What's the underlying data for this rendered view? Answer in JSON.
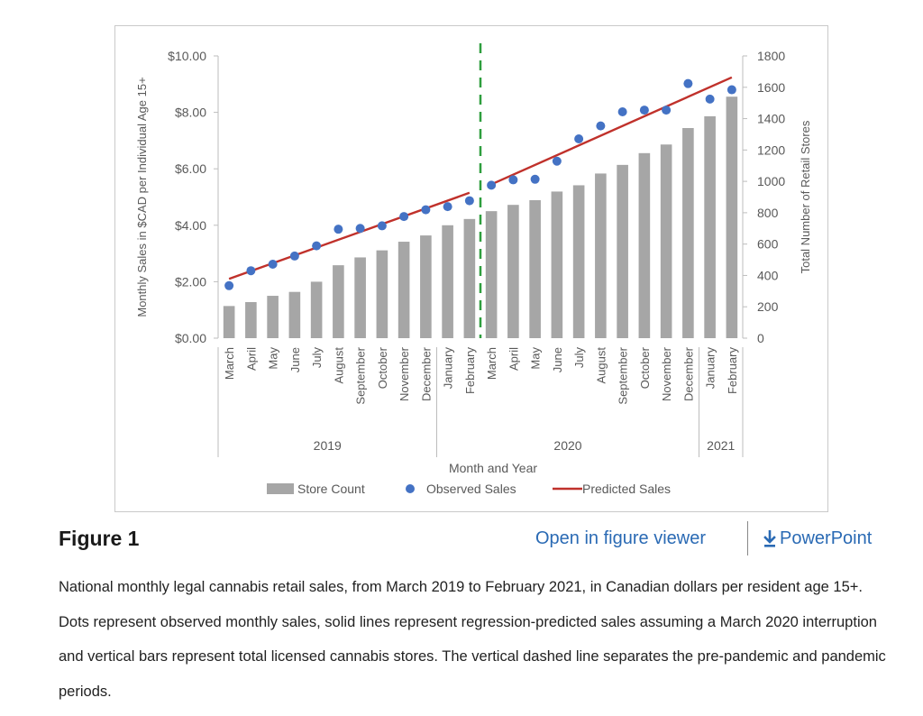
{
  "figure": {
    "title": "Figure 1",
    "open_viewer_label": "Open in figure viewer",
    "powerpoint_label": "PowerPoint",
    "link_color": "#2a6ab4",
    "download_icon": "download-icon",
    "caption": "National monthly legal cannabis retail sales, from March 2019 to February 2021, in Canadian dollars per resident age 15+. Dots represent observed monthly sales, solid lines represent regression-predicted sales assuming a March 2020 interruption and vertical bars represent total licensed cannabis stores. The vertical dashed line separates the pre-pandemic and pandemic periods."
  },
  "chart_data": {
    "type": "bar",
    "xlabel": "Month and Year",
    "ylabel_left": "Monthly Sales in $CAD per Individual Age 15+",
    "ylabel_right": "Total Number of Retail Stores",
    "ylim_left": [
      0,
      10
    ],
    "ylim_right": [
      0,
      1800
    ],
    "left_ticks": [
      "$0.00",
      "$2.00",
      "$4.00",
      "$6.00",
      "$8.00",
      "$10.00"
    ],
    "right_ticks": [
      "0",
      "200",
      "400",
      "600",
      "800",
      "1000",
      "1200",
      "1400",
      "1600",
      "1800"
    ],
    "grid": false,
    "legend_position": "bottom",
    "categories": [
      "March",
      "April",
      "May",
      "June",
      "July",
      "August",
      "September",
      "October",
      "November",
      "December",
      "January",
      "February",
      "March",
      "April",
      "May",
      "June",
      "July",
      "August",
      "September",
      "October",
      "November",
      "December",
      "January",
      "February"
    ],
    "year_groups": [
      {
        "label": "2019",
        "start": 0,
        "end": 9
      },
      {
        "label": "2020",
        "start": 10,
        "end": 21
      },
      {
        "label": "2021",
        "start": 22,
        "end": 23
      }
    ],
    "series": [
      {
        "name": "Store Count",
        "type": "bar",
        "axis": "right",
        "color": "#a6a6a6",
        "values": [
          205,
          230,
          270,
          295,
          360,
          465,
          515,
          560,
          615,
          655,
          720,
          760,
          810,
          850,
          880,
          935,
          975,
          1050,
          1105,
          1180,
          1235,
          1340,
          1415,
          1540
        ]
      },
      {
        "name": "Observed Sales",
        "type": "scatter",
        "axis": "left",
        "color": "#4472c4",
        "values": [
          1.86,
          2.39,
          2.62,
          2.91,
          3.27,
          3.86,
          3.89,
          3.98,
          4.31,
          4.55,
          4.66,
          4.87,
          5.42,
          5.61,
          5.63,
          6.27,
          7.06,
          7.52,
          8.02,
          8.08,
          8.08,
          9.02,
          8.47,
          8.8
        ]
      },
      {
        "name": "Predicted Sales",
        "type": "line",
        "axis": "left",
        "color": "#c0312b",
        "segments": [
          {
            "x_from": 0,
            "x_to": 11,
            "y_from": 2.1,
            "y_to": 5.15
          },
          {
            "x_from": 12,
            "x_to": 23,
            "y_from": 5.45,
            "y_to": 9.24
          }
        ]
      }
    ],
    "annotations": [
      {
        "type": "vertical-dashed-line",
        "between": [
          11,
          12
        ],
        "color": "#2e9e3e"
      }
    ]
  }
}
